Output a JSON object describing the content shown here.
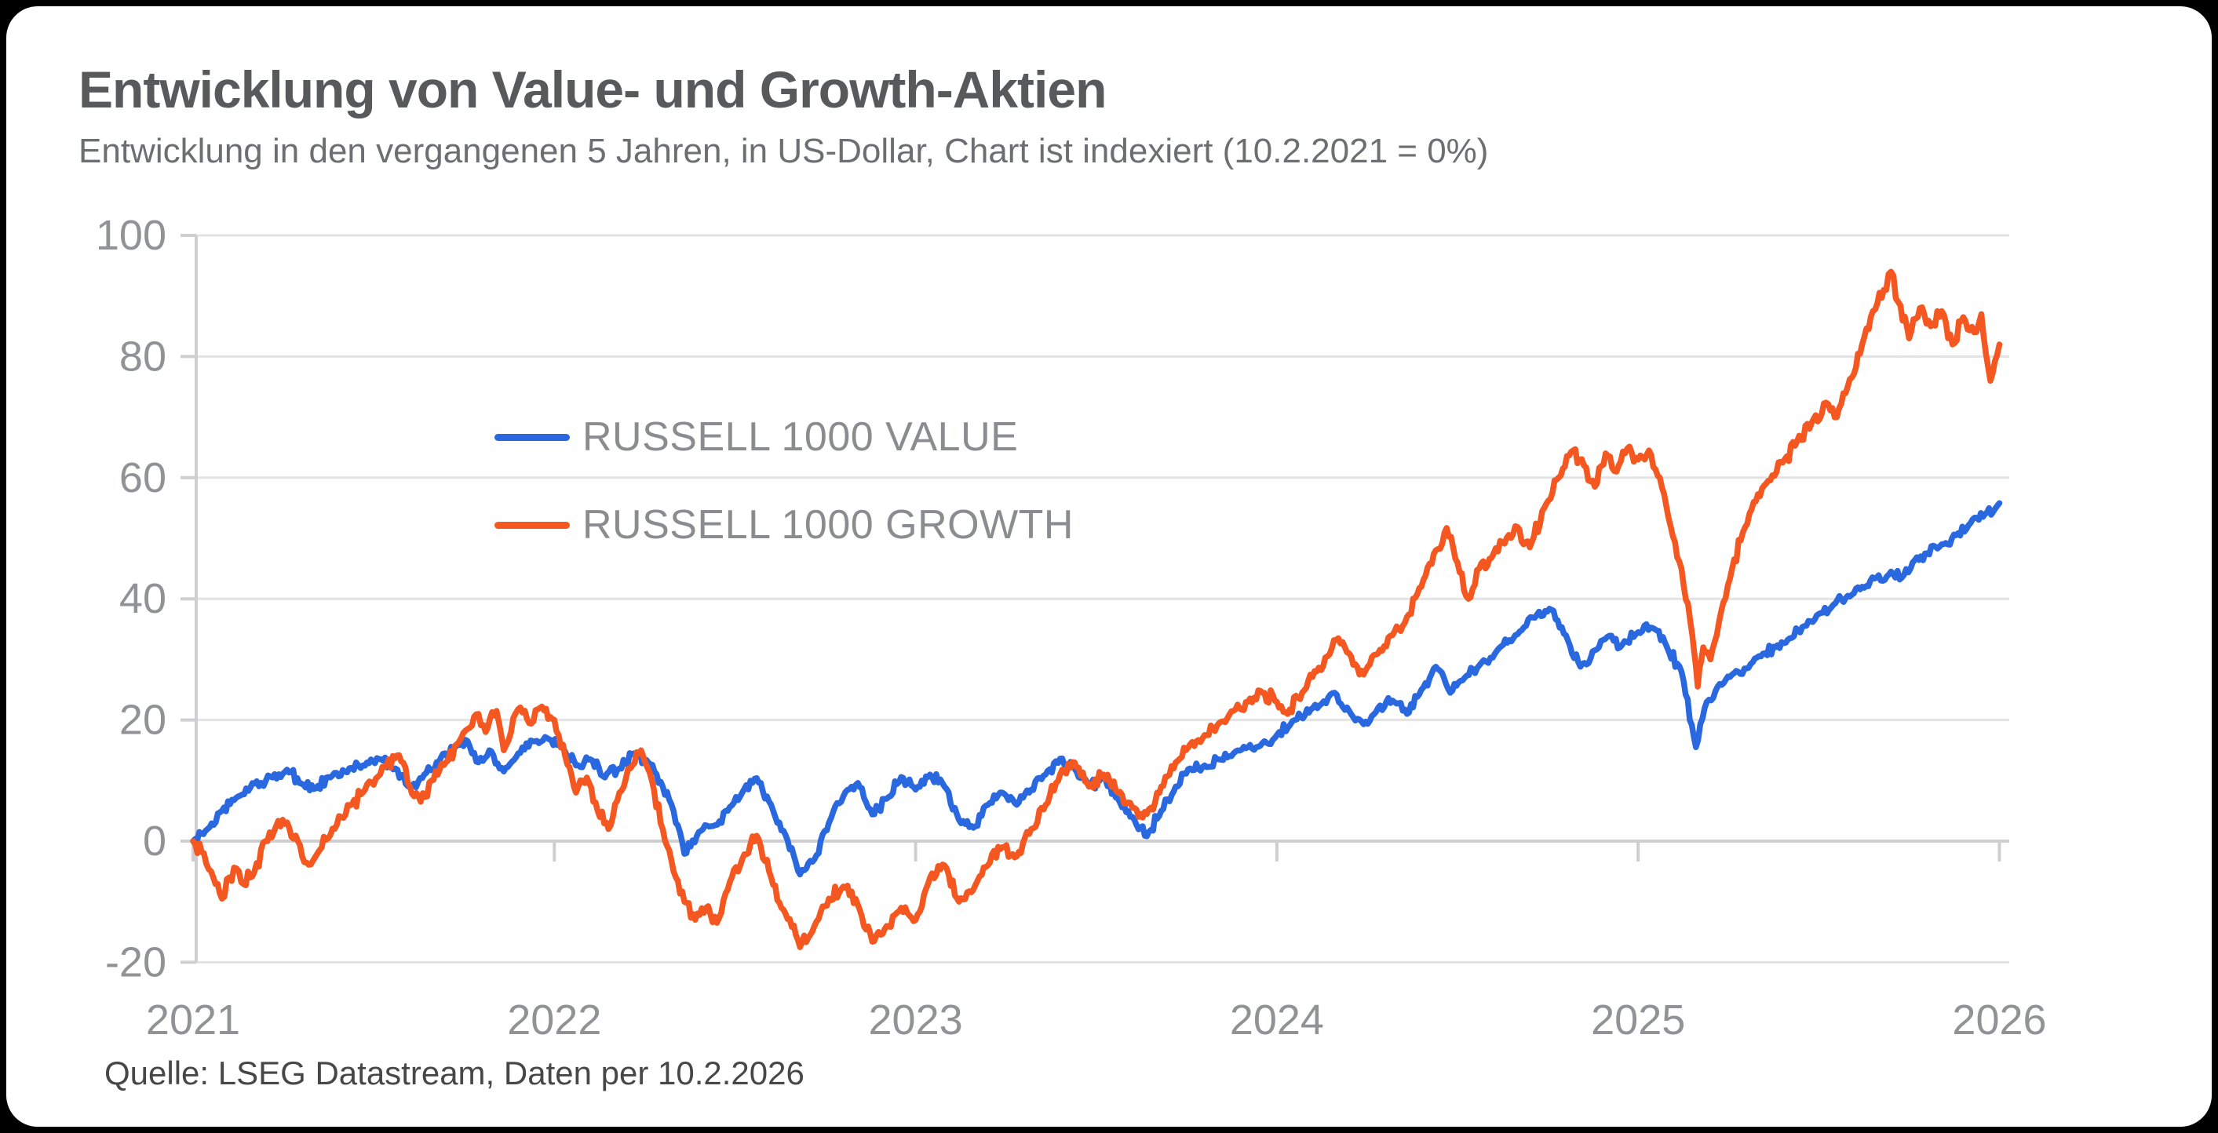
{
  "page": {
    "background": "#000000",
    "card_background": "#ffffff"
  },
  "chart_data": {
    "type": "line",
    "title": "Entwicklung von Value- und Growth-Aktien",
    "subtitle": "Entwicklung in den vergangenen 5 Jahren, in US-Dollar, Chart ist indexiert (10.2.2021 = 0%)",
    "source": "Quelle: LSEG Datastream, Daten per 10.2.2026",
    "x_axis": {
      "tick_labels": [
        "2021",
        "2022",
        "2023",
        "2024",
        "2025",
        "2026"
      ],
      "range_years_since_base": [
        0,
        5
      ],
      "base_date_label": "10.2.2021"
    },
    "y_axis": {
      "ticks": [
        100,
        80,
        60,
        40,
        20,
        0,
        -20
      ],
      "range": [
        -20,
        100
      ],
      "unit": "%"
    },
    "grid": true,
    "legend_position": "inside-upper-left",
    "colors": {
      "grid": "#e3e3e4",
      "axis": "#cfcfd1",
      "tick_text": "#909296"
    },
    "series": [
      {
        "name": "RUSSELL 1000 VALUE",
        "color": "#2A68E0",
        "volatility_hint": 1.0,
        "points_t_years_value_pct": [
          [
            0.0,
            0
          ],
          [
            0.04,
            2.0
          ],
          [
            0.08,
            5.0
          ],
          [
            0.13,
            7.5
          ],
          [
            0.17,
            9.5
          ],
          [
            0.22,
            10.5
          ],
          [
            0.26,
            11.8
          ],
          [
            0.3,
            9.5
          ],
          [
            0.34,
            8.7
          ],
          [
            0.38,
            10.5
          ],
          [
            0.42,
            11.5
          ],
          [
            0.47,
            12.5
          ],
          [
            0.52,
            13.5
          ],
          [
            0.56,
            12.0
          ],
          [
            0.6,
            8.9
          ],
          [
            0.64,
            11.0
          ],
          [
            0.68,
            13.0
          ],
          [
            0.72,
            15.5
          ],
          [
            0.76,
            16.5
          ],
          [
            0.79,
            13.0
          ],
          [
            0.82,
            15.0
          ],
          [
            0.86,
            11.5
          ],
          [
            0.9,
            14.5
          ],
          [
            0.94,
            16.5
          ],
          [
            0.98,
            17.0
          ],
          [
            1.02,
            16.0
          ],
          [
            1.06,
            12.5
          ],
          [
            1.1,
            13.5
          ],
          [
            1.14,
            10.5
          ],
          [
            1.18,
            12.0
          ],
          [
            1.22,
            14.5
          ],
          [
            1.26,
            13.0
          ],
          [
            1.3,
            9.0
          ],
          [
            1.33,
            5.0
          ],
          [
            1.36,
            -2.1
          ],
          [
            1.4,
            1.5
          ],
          [
            1.44,
            2.5
          ],
          [
            1.48,
            5.0
          ],
          [
            1.52,
            8.0
          ],
          [
            1.56,
            10.4
          ],
          [
            1.6,
            6.0
          ],
          [
            1.64,
            1.0
          ],
          [
            1.68,
            -5.5
          ],
          [
            1.72,
            -3.0
          ],
          [
            1.76,
            3.0
          ],
          [
            1.8,
            7.4
          ],
          [
            1.84,
            9.6
          ],
          [
            1.88,
            4.4
          ],
          [
            1.92,
            7.0
          ],
          [
            1.96,
            10.6
          ],
          [
            2.0,
            8.5
          ],
          [
            2.04,
            11.0
          ],
          [
            2.08,
            9.0
          ],
          [
            2.12,
            3.5
          ],
          [
            2.16,
            2.2
          ],
          [
            2.2,
            6.0
          ],
          [
            2.24,
            8.0
          ],
          [
            2.28,
            6.0
          ],
          [
            2.32,
            8.5
          ],
          [
            2.36,
            11.0
          ],
          [
            2.4,
            13.6
          ],
          [
            2.44,
            12.0
          ],
          [
            2.48,
            9.0
          ],
          [
            2.52,
            10.5
          ],
          [
            2.56,
            7.0
          ],
          [
            2.6,
            4.0
          ],
          [
            2.64,
            0.8
          ],
          [
            2.68,
            5.0
          ],
          [
            2.72,
            9.0
          ],
          [
            2.76,
            12.0
          ],
          [
            2.8,
            12.5
          ],
          [
            2.84,
            13.5
          ],
          [
            2.88,
            14.5
          ],
          [
            2.92,
            15.5
          ],
          [
            2.96,
            16.2
          ],
          [
            3.0,
            17.5
          ],
          [
            3.05,
            20.0
          ],
          [
            3.1,
            22.0
          ],
          [
            3.16,
            24.5
          ],
          [
            3.2,
            21.5
          ],
          [
            3.24,
            19.3
          ],
          [
            3.28,
            22.0
          ],
          [
            3.32,
            23.2
          ],
          [
            3.36,
            21.0
          ],
          [
            3.4,
            25.0
          ],
          [
            3.44,
            28.8
          ],
          [
            3.48,
            24.5
          ],
          [
            3.52,
            27.0
          ],
          [
            3.56,
            29.0
          ],
          [
            3.61,
            31.5
          ],
          [
            3.66,
            34.0
          ],
          [
            3.72,
            37.4
          ],
          [
            3.76,
            38.2
          ],
          [
            3.8,
            34.0
          ],
          [
            3.84,
            28.8
          ],
          [
            3.88,
            31.5
          ],
          [
            3.92,
            33.9
          ],
          [
            3.95,
            32.0
          ],
          [
            4.0,
            34.5
          ],
          [
            4.04,
            35.2
          ],
          [
            4.08,
            32.0
          ],
          [
            4.12,
            28.0
          ],
          [
            4.16,
            15.5
          ],
          [
            4.19,
            23.0
          ],
          [
            4.22,
            25.5
          ],
          [
            4.26,
            27.5
          ],
          [
            4.3,
            28.5
          ],
          [
            4.34,
            30.5
          ],
          [
            4.38,
            32.0
          ],
          [
            4.42,
            33.5
          ],
          [
            4.46,
            35.5
          ],
          [
            4.5,
            37.5
          ],
          [
            4.54,
            39.0
          ],
          [
            4.58,
            40.5
          ],
          [
            4.62,
            42.0
          ],
          [
            4.66,
            43.5
          ],
          [
            4.7,
            44.5
          ],
          [
            4.73,
            43.5
          ],
          [
            4.76,
            46.0
          ],
          [
            4.8,
            47.5
          ],
          [
            4.84,
            49.0
          ],
          [
            4.88,
            50.5
          ],
          [
            4.92,
            52.5
          ],
          [
            4.96,
            54.0
          ],
          [
            5.0,
            55.8
          ]
        ]
      },
      {
        "name": "RUSSELL 1000 GROWTH",
        "color": "#F45720",
        "volatility_hint": 1.3,
        "points_t_years_value_pct": [
          [
            0.0,
            0
          ],
          [
            0.03,
            -2.0
          ],
          [
            0.05,
            -5.0
          ],
          [
            0.08,
            -9.5
          ],
          [
            0.1,
            -6.0
          ],
          [
            0.12,
            -4.5
          ],
          [
            0.14,
            -7.1
          ],
          [
            0.17,
            -5.0
          ],
          [
            0.2,
            0.0
          ],
          [
            0.23,
            2.5
          ],
          [
            0.26,
            3.1
          ],
          [
            0.29,
            0.0
          ],
          [
            0.32,
            -3.9
          ],
          [
            0.35,
            -1.5
          ],
          [
            0.38,
            1.0
          ],
          [
            0.41,
            4.0
          ],
          [
            0.44,
            6.1
          ],
          [
            0.47,
            8.0
          ],
          [
            0.5,
            9.3
          ],
          [
            0.53,
            12.2
          ],
          [
            0.57,
            14.2
          ],
          [
            0.6,
            9.0
          ],
          [
            0.63,
            6.5
          ],
          [
            0.66,
            10.0
          ],
          [
            0.7,
            13.0
          ],
          [
            0.73,
            16.0
          ],
          [
            0.76,
            18.5
          ],
          [
            0.79,
            21.0
          ],
          [
            0.81,
            18.0
          ],
          [
            0.84,
            21.5
          ],
          [
            0.86,
            15.0
          ],
          [
            0.88,
            18.0
          ],
          [
            0.9,
            21.8
          ],
          [
            0.93,
            19.5
          ],
          [
            0.96,
            22.0
          ],
          [
            1.0,
            20.0
          ],
          [
            1.03,
            14.0
          ],
          [
            1.06,
            8.0
          ],
          [
            1.09,
            10.5
          ],
          [
            1.12,
            5.0
          ],
          [
            1.15,
            2.0
          ],
          [
            1.18,
            8.0
          ],
          [
            1.21,
            12.0
          ],
          [
            1.24,
            15.0
          ],
          [
            1.27,
            10.0
          ],
          [
            1.3,
            2.0
          ],
          [
            1.33,
            -5.0
          ],
          [
            1.36,
            -10.0
          ],
          [
            1.39,
            -13.0
          ],
          [
            1.42,
            -11.0
          ],
          [
            1.45,
            -13.5
          ],
          [
            1.48,
            -8.0
          ],
          [
            1.52,
            -3.0
          ],
          [
            1.56,
            0.9
          ],
          [
            1.6,
            -6.0
          ],
          [
            1.64,
            -12.0
          ],
          [
            1.68,
            -17.5
          ],
          [
            1.72,
            -14.0
          ],
          [
            1.76,
            -9.5
          ],
          [
            1.8,
            -7.5
          ],
          [
            1.84,
            -10.5
          ],
          [
            1.88,
            -16.6
          ],
          [
            1.92,
            -14.0
          ],
          [
            1.96,
            -11.0
          ],
          [
            2.0,
            -13.0
          ],
          [
            2.04,
            -6.0
          ],
          [
            2.08,
            -4.0
          ],
          [
            2.12,
            -10.0
          ],
          [
            2.16,
            -8.0
          ],
          [
            2.2,
            -4.0
          ],
          [
            2.24,
            -1.0
          ],
          [
            2.28,
            -2.5
          ],
          [
            2.32,
            2.0
          ],
          [
            2.36,
            6.0
          ],
          [
            2.4,
            11.0
          ],
          [
            2.44,
            13.0
          ],
          [
            2.48,
            9.0
          ],
          [
            2.52,
            11.0
          ],
          [
            2.56,
            8.0
          ],
          [
            2.6,
            5.5
          ],
          [
            2.64,
            4.5
          ],
          [
            2.68,
            9.0
          ],
          [
            2.72,
            13.0
          ],
          [
            2.76,
            16.0
          ],
          [
            2.8,
            17.5
          ],
          [
            2.84,
            19.5
          ],
          [
            2.88,
            21.5
          ],
          [
            2.92,
            23.0
          ],
          [
            2.96,
            24.5
          ],
          [
            3.0,
            23.0
          ],
          [
            3.03,
            21.0
          ],
          [
            3.07,
            24.5
          ],
          [
            3.11,
            28.0
          ],
          [
            3.14,
            30.5
          ],
          [
            3.17,
            33.5
          ],
          [
            3.2,
            31.0
          ],
          [
            3.24,
            27.5
          ],
          [
            3.28,
            31.0
          ],
          [
            3.32,
            34.0
          ],
          [
            3.36,
            37.0
          ],
          [
            3.4,
            42.0
          ],
          [
            3.44,
            48.0
          ],
          [
            3.47,
            51.7
          ],
          [
            3.5,
            46.0
          ],
          [
            3.53,
            40.0
          ],
          [
            3.56,
            45.0
          ],
          [
            3.6,
            47.5
          ],
          [
            3.63,
            49.1
          ],
          [
            3.66,
            52.0
          ],
          [
            3.7,
            48.5
          ],
          [
            3.74,
            55.0
          ],
          [
            3.78,
            60.0
          ],
          [
            3.82,
            64.5
          ],
          [
            3.85,
            62.0
          ],
          [
            3.88,
            58.5
          ],
          [
            3.91,
            64.0
          ],
          [
            3.94,
            61.0
          ],
          [
            3.97,
            64.8
          ],
          [
            4.0,
            63.0
          ],
          [
            4.03,
            64.5
          ],
          [
            4.06,
            60.0
          ],
          [
            4.09,
            52.0
          ],
          [
            4.12,
            45.0
          ],
          [
            4.15,
            34.0
          ],
          [
            4.165,
            25.5
          ],
          [
            4.18,
            32.0
          ],
          [
            4.2,
            30.0
          ],
          [
            4.23,
            38.0
          ],
          [
            4.26,
            45.0
          ],
          [
            4.29,
            51.0
          ],
          [
            4.32,
            56.0
          ],
          [
            4.36,
            59.5
          ],
          [
            4.4,
            62.5
          ],
          [
            4.44,
            66.0
          ],
          [
            4.48,
            69.0
          ],
          [
            4.52,
            72.4
          ],
          [
            4.55,
            70.0
          ],
          [
            4.58,
            75.0
          ],
          [
            4.62,
            82.0
          ],
          [
            4.65,
            87.5
          ],
          [
            4.68,
            91.0
          ],
          [
            4.7,
            94.0
          ],
          [
            4.72,
            89.0
          ],
          [
            4.75,
            83.0
          ],
          [
            4.78,
            88.0
          ],
          [
            4.81,
            85.0
          ],
          [
            4.84,
            87.5
          ],
          [
            4.87,
            82.0
          ],
          [
            4.9,
            86.5
          ],
          [
            4.93,
            84.0
          ],
          [
            4.95,
            87.0
          ],
          [
            4.975,
            76.0
          ],
          [
            5.0,
            82.0
          ]
        ]
      }
    ]
  }
}
